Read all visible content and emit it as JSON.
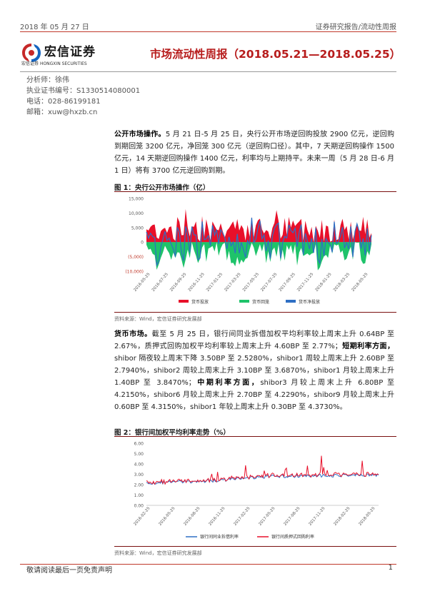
{
  "header": {
    "date": "2018 年 05 月 27 日",
    "category": "证券研究报告/流动性周报"
  },
  "logo": {
    "cn": "宏信证券",
    "en": "HONGXIN SECURITIES",
    "small": "宏信证券"
  },
  "title": "市场流动性周报（2018.05.21—2018.05.25）",
  "meta": [
    "分析师：徐伟",
    "执业证书编号：S1330514080001",
    "电话：028-86199181",
    "邮箱：xuw@hxzb.cn"
  ],
  "para1": {
    "lead": "公开市场操作。",
    "text": "5 月 21 日-5 月 25 日，央行公开市场逆回购投放 2900 亿元，逆回购到期回笼 3200 亿元，净回笼 300 亿元（逆回购口径）。其中，7 天期逆回购操作 1500 亿元，14 天期逆回购操作 1400 亿元，利率均与上期持平。未来一周（5 月 28 日-6 月 1 日）将有 3700 亿元逆回购到期。"
  },
  "fig1": {
    "title": "图 1：央行公开市场操作（亿）",
    "source": "资料来源：Wind，宏信证券研究发展部"
  },
  "para2": {
    "lead": "货币市场。",
    "text1": "截至 5 月 25 日，银行间同业拆借加权平均利率较上周末上升 0.64BP 至 2.67%，质押式回购加权平均利率较上周末上升 4.60BP 至 2.77%；",
    "lead2": "短期利率方面，",
    "text2": "shibor 隔夜较上周末下降 3.50BP 至 2.5280%，shibor1 周较上周末上升 2.60BP 至 2.7940%，shibor2 周较上周末上升 3.10BP 至 3.6870%，shibor1 月较上周末上升 1.40BP 至 3.8470%；",
    "lead3": "中期利率方面，",
    "text3": "shibor3 月较上周末上升 6.80BP 至 4.2150%，shibor6 月较上周末上升 2.70BP 至 4.2290%，shibor9 月较上周末上升 0.60BP 至 4.3150%，shibor1 年较上周末上升 0.30BP 至 4.3730%。"
  },
  "fig2": {
    "title": "图 2：银行间加权平均利率走势（%）",
    "source": "资料来源：Wind，宏信证券研究发展部"
  },
  "footer": {
    "text": "敬请阅读最后一页免责声明",
    "page": "1"
  },
  "colors": {
    "red": "#e8102a",
    "green": "#1ec36a",
    "blue": "#2e6fc4",
    "brand": "#b71c1c"
  },
  "chart_data": [
    {
      "type": "area",
      "ylim": [
        -10000,
        15000
      ],
      "yticks": [
        "15,000",
        "10,000",
        "5,000",
        "0",
        "(5,000)",
        "(10,000)"
      ],
      "xticks": [
        "2016-05-25",
        "2016-07-25",
        "2016-09-25",
        "2016-11-25",
        "2017-01-25",
        "2017-03-25",
        "2017-05-25",
        "2017-07-25",
        "2017-09-25",
        "2017-11-25",
        "2018-01-25",
        "2018-03-25",
        "2018-05-25"
      ],
      "series": [
        {
          "name": "货币投放",
          "color": "#e8102a"
        },
        {
          "name": "货币回笼",
          "color": "#1ec36a"
        },
        {
          "name": "货币净投放",
          "color": "#2e6fc4"
        }
      ]
    },
    {
      "type": "line",
      "ylim": [
        0,
        6
      ],
      "yticks": [
        "6.00",
        "5.00",
        "4.00",
        "3.00",
        "2.00",
        "1.00",
        "0.00"
      ],
      "xticks": [
        "2016-02-25",
        "2016-05-25",
        "2016-08-25",
        "2016-11-25",
        "2017-02-25",
        "2017-05-25",
        "2017-08-25",
        "2017-11-25",
        "2018-02-25",
        "2018-05-25"
      ],
      "series": [
        {
          "name": "银行间同业拆借利率",
          "color": "#2e6fc4"
        },
        {
          "name": "银行间质押式回购利率",
          "color": "#e8102a"
        }
      ]
    }
  ]
}
